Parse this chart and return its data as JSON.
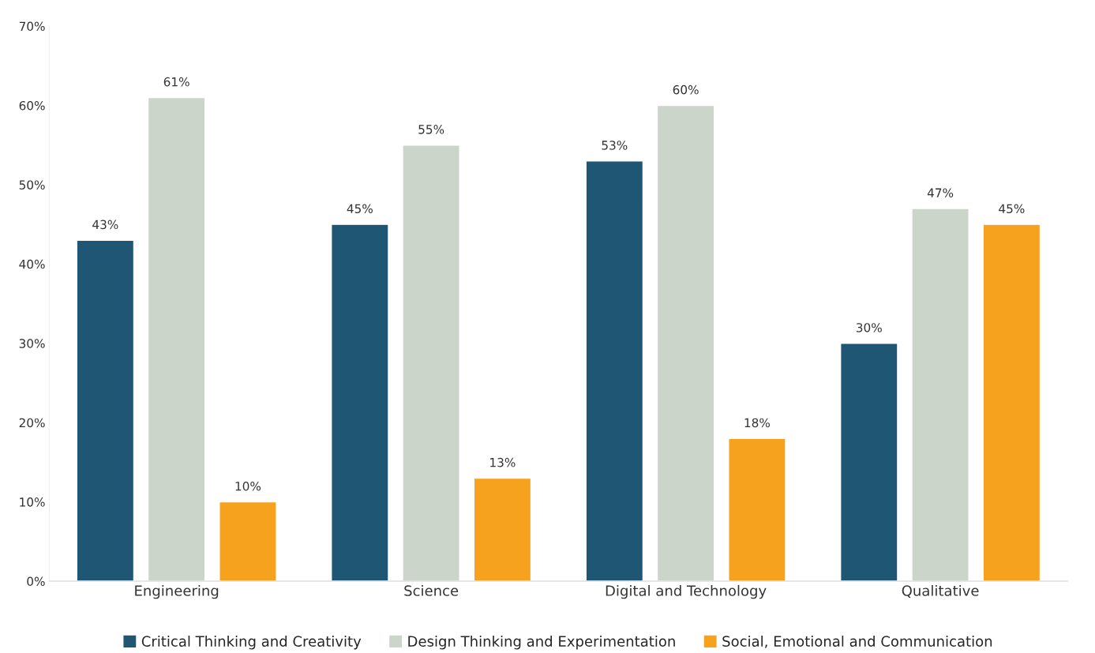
{
  "chart_data": {
    "type": "bar",
    "categories": [
      "Engineering",
      "Science",
      "Digital and Technology",
      "Qualitative"
    ],
    "series": [
      {
        "name": "Critical Thinking and Creativity",
        "color": "#1f5673",
        "values": [
          43,
          45,
          53,
          30
        ],
        "value_labels": [
          "43%",
          "45%",
          "53%",
          "30%"
        ]
      },
      {
        "name": "Design Thinking and Experimentation",
        "color": "#ccd5c9",
        "values": [
          61,
          55,
          60,
          47
        ],
        "value_labels": [
          "61%",
          "55%",
          "60%",
          "47%"
        ]
      },
      {
        "name": "Social, Emotional and Communication",
        "color": "#f7a21e",
        "values": [
          10,
          13,
          18,
          45
        ],
        "value_labels": [
          "10%",
          "13%",
          "18%",
          "45%"
        ]
      }
    ],
    "ylim": [
      0,
      70
    ],
    "yticks": [
      {
        "value": 0,
        "label": "0%"
      },
      {
        "value": 10,
        "label": "10%"
      },
      {
        "value": 20,
        "label": "20%"
      },
      {
        "value": 30,
        "label": "30%"
      },
      {
        "value": 40,
        "label": "40%"
      },
      {
        "value": 50,
        "label": "50%"
      },
      {
        "value": 60,
        "label": "60%"
      },
      {
        "value": 70,
        "label": "70%"
      }
    ],
    "legend": "bottom",
    "grid": false
  }
}
